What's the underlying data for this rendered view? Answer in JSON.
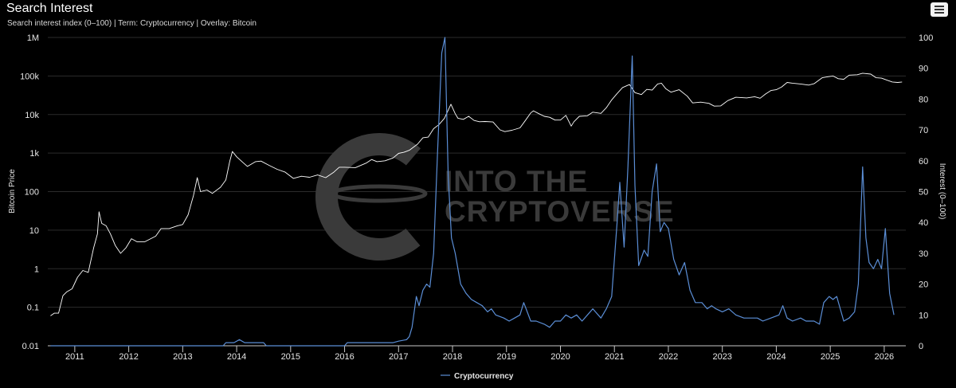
{
  "header": {
    "title": "Search Interest",
    "subtitle": "Search interest index (0–100) | Term: Cryptocurrency | Overlay: Bitcoin",
    "menu_icon": "hamburger-menu-icon"
  },
  "watermark": {
    "line1": "INTO THE",
    "line2": "CRYPTOVERSE"
  },
  "colors": {
    "background": "#000000",
    "grid": "#2b2b2b",
    "price_line": "#ffffff",
    "interest_line": "#5b8ed6"
  },
  "chart_data": {
    "type": "line",
    "title": "Search Interest",
    "grid": true,
    "legend": {
      "position": "bottom-center",
      "entries": [
        "Cryptocurrency"
      ]
    },
    "x_axis": {
      "ticks": [
        "2011",
        "2012",
        "2013",
        "2014",
        "2015",
        "2016",
        "2017",
        "2018",
        "2019",
        "2020",
        "2021",
        "2022",
        "2023",
        "2024",
        "2025",
        "2026"
      ],
      "range": [
        2010.5,
        2026.4
      ]
    },
    "y_axis_left": {
      "label": "Bitcoin Price",
      "scale": "log",
      "range": [
        0.01,
        1000000
      ],
      "ticks": [
        "0.01",
        "0.1",
        "1",
        "10",
        "100",
        "1k",
        "10k",
        "100k",
        "1M"
      ]
    },
    "y_axis_right": {
      "label": "Interest (0–100)",
      "scale": "linear",
      "range": [
        0,
        100
      ],
      "ticks": [
        "0",
        "10",
        "20",
        "30",
        "40",
        "50",
        "60",
        "70",
        "80",
        "90",
        "100"
      ]
    },
    "series": [
      {
        "name": "Bitcoin Price",
        "axis": "left",
        "color": "#ffffff",
        "points": [
          [
            2010.55,
            0.06
          ],
          [
            2010.62,
            0.07
          ],
          [
            2010.7,
            0.07
          ],
          [
            2010.78,
            0.2
          ],
          [
            2010.85,
            0.25
          ],
          [
            2010.95,
            0.3
          ],
          [
            2011.05,
            0.6
          ],
          [
            2011.15,
            0.9
          ],
          [
            2011.25,
            0.8
          ],
          [
            2011.35,
            3.5
          ],
          [
            2011.42,
            8
          ],
          [
            2011.45,
            30
          ],
          [
            2011.5,
            15
          ],
          [
            2011.58,
            13
          ],
          [
            2011.66,
            8
          ],
          [
            2011.75,
            4
          ],
          [
            2011.85,
            2.5
          ],
          [
            2011.95,
            3.5
          ],
          [
            2012.05,
            6
          ],
          [
            2012.15,
            5
          ],
          [
            2012.3,
            5
          ],
          [
            2012.5,
            7
          ],
          [
            2012.6,
            11
          ],
          [
            2012.75,
            11
          ],
          [
            2012.9,
            13
          ],
          [
            2013.0,
            14
          ],
          [
            2013.1,
            25
          ],
          [
            2013.2,
            80
          ],
          [
            2013.27,
            230
          ],
          [
            2013.33,
            100
          ],
          [
            2013.45,
            110
          ],
          [
            2013.55,
            90
          ],
          [
            2013.7,
            130
          ],
          [
            2013.8,
            200
          ],
          [
            2013.87,
            600
          ],
          [
            2013.92,
            1100
          ],
          [
            2014.0,
            800
          ],
          [
            2014.1,
            600
          ],
          [
            2014.2,
            450
          ],
          [
            2014.35,
            600
          ],
          [
            2014.45,
            620
          ],
          [
            2014.6,
            480
          ],
          [
            2014.75,
            380
          ],
          [
            2014.9,
            320
          ],
          [
            2015.05,
            220
          ],
          [
            2015.2,
            250
          ],
          [
            2015.35,
            235
          ],
          [
            2015.5,
            270
          ],
          [
            2015.65,
            230
          ],
          [
            2015.8,
            320
          ],
          [
            2015.9,
            430
          ],
          [
            2016.0,
            430
          ],
          [
            2016.2,
            420
          ],
          [
            2016.4,
            550
          ],
          [
            2016.5,
            680
          ],
          [
            2016.6,
            600
          ],
          [
            2016.75,
            630
          ],
          [
            2016.9,
            750
          ],
          [
            2017.0,
            980
          ],
          [
            2017.1,
            1050
          ],
          [
            2017.2,
            1180
          ],
          [
            2017.35,
            1700
          ],
          [
            2017.45,
            2500
          ],
          [
            2017.55,
            2600
          ],
          [
            2017.65,
            4300
          ],
          [
            2017.75,
            5500
          ],
          [
            2017.85,
            8000
          ],
          [
            2017.93,
            14000
          ],
          [
            2017.97,
            18500
          ],
          [
            2018.05,
            10500
          ],
          [
            2018.1,
            8000
          ],
          [
            2018.2,
            7500
          ],
          [
            2018.3,
            9000
          ],
          [
            2018.4,
            7000
          ],
          [
            2018.5,
            6500
          ],
          [
            2018.6,
            6600
          ],
          [
            2018.75,
            6400
          ],
          [
            2018.88,
            4000
          ],
          [
            2018.97,
            3600
          ],
          [
            2019.1,
            3900
          ],
          [
            2019.25,
            4500
          ],
          [
            2019.35,
            7000
          ],
          [
            2019.45,
            11000
          ],
          [
            2019.5,
            12500
          ],
          [
            2019.6,
            10500
          ],
          [
            2019.7,
            9000
          ],
          [
            2019.8,
            8500
          ],
          [
            2019.9,
            7200
          ],
          [
            2020.0,
            7200
          ],
          [
            2020.1,
            9500
          ],
          [
            2020.2,
            5000
          ],
          [
            2020.25,
            6500
          ],
          [
            2020.35,
            9000
          ],
          [
            2020.5,
            9300
          ],
          [
            2020.6,
            11500
          ],
          [
            2020.75,
            10700
          ],
          [
            2020.85,
            15000
          ],
          [
            2020.95,
            24000
          ],
          [
            2021.05,
            35000
          ],
          [
            2021.15,
            50000
          ],
          [
            2021.28,
            60000
          ],
          [
            2021.38,
            37000
          ],
          [
            2021.5,
            33000
          ],
          [
            2021.6,
            45000
          ],
          [
            2021.7,
            43000
          ],
          [
            2021.8,
            62000
          ],
          [
            2021.87,
            65000
          ],
          [
            2021.95,
            47000
          ],
          [
            2022.05,
            38000
          ],
          [
            2022.2,
            44000
          ],
          [
            2022.35,
            30000
          ],
          [
            2022.45,
            20000
          ],
          [
            2022.6,
            21000
          ],
          [
            2022.75,
            19500
          ],
          [
            2022.85,
            16500
          ],
          [
            2022.97,
            16800
          ],
          [
            2023.1,
            23000
          ],
          [
            2023.25,
            28000
          ],
          [
            2023.45,
            27000
          ],
          [
            2023.6,
            29000
          ],
          [
            2023.7,
            26500
          ],
          [
            2023.8,
            34000
          ],
          [
            2023.9,
            42000
          ],
          [
            2024.0,
            44000
          ],
          [
            2024.1,
            52000
          ],
          [
            2024.2,
            68000
          ],
          [
            2024.3,
            65000
          ],
          [
            2024.45,
            62000
          ],
          [
            2024.6,
            58000
          ],
          [
            2024.7,
            63000
          ],
          [
            2024.85,
            90000
          ],
          [
            2024.97,
            96000
          ],
          [
            2025.05,
            100000
          ],
          [
            2025.15,
            85000
          ],
          [
            2025.25,
            82000
          ],
          [
            2025.35,
            105000
          ],
          [
            2025.5,
            108000
          ],
          [
            2025.6,
            118000
          ],
          [
            2025.75,
            112000
          ],
          [
            2025.85,
            90000
          ],
          [
            2025.95,
            88000
          ],
          [
            2026.05,
            78000
          ],
          [
            2026.15,
            70000
          ],
          [
            2026.25,
            68000
          ],
          [
            2026.33,
            70000
          ]
        ]
      },
      {
        "name": "Cryptocurrency",
        "axis": "right",
        "color": "#5b8ed6",
        "points": [
          [
            2010.55,
            0
          ],
          [
            2013.75,
            0
          ],
          [
            2013.8,
            1
          ],
          [
            2013.95,
            1
          ],
          [
            2014.05,
            2
          ],
          [
            2014.15,
            1
          ],
          [
            2014.5,
            1
          ],
          [
            2014.55,
            0
          ],
          [
            2016.0,
            0
          ],
          [
            2016.05,
            1
          ],
          [
            2016.9,
            1
          ],
          [
            2017.0,
            1.5
          ],
          [
            2017.15,
            2
          ],
          [
            2017.2,
            3
          ],
          [
            2017.25,
            6
          ],
          [
            2017.33,
            16
          ],
          [
            2017.38,
            13
          ],
          [
            2017.45,
            18
          ],
          [
            2017.52,
            20
          ],
          [
            2017.58,
            19
          ],
          [
            2017.65,
            30
          ],
          [
            2017.72,
            62
          ],
          [
            2017.8,
            95
          ],
          [
            2017.86,
            100
          ],
          [
            2017.92,
            55
          ],
          [
            2017.98,
            35
          ],
          [
            2018.05,
            30
          ],
          [
            2018.15,
            20
          ],
          [
            2018.25,
            17
          ],
          [
            2018.35,
            15
          ],
          [
            2018.45,
            14
          ],
          [
            2018.55,
            13
          ],
          [
            2018.65,
            11
          ],
          [
            2018.72,
            12
          ],
          [
            2018.8,
            10
          ],
          [
            2018.95,
            9
          ],
          [
            2019.05,
            8
          ],
          [
            2019.15,
            9
          ],
          [
            2019.25,
            10
          ],
          [
            2019.32,
            14
          ],
          [
            2019.45,
            8
          ],
          [
            2019.55,
            8
          ],
          [
            2019.7,
            7
          ],
          [
            2019.8,
            6
          ],
          [
            2019.9,
            8
          ],
          [
            2020.0,
            8
          ],
          [
            2020.1,
            10
          ],
          [
            2020.2,
            9
          ],
          [
            2020.3,
            10
          ],
          [
            2020.4,
            8
          ],
          [
            2020.5,
            10
          ],
          [
            2020.6,
            12
          ],
          [
            2020.75,
            9
          ],
          [
            2020.85,
            12
          ],
          [
            2020.95,
            16
          ],
          [
            2021.05,
            40
          ],
          [
            2021.1,
            53
          ],
          [
            2021.18,
            32
          ],
          [
            2021.25,
            58
          ],
          [
            2021.33,
            94
          ],
          [
            2021.38,
            52
          ],
          [
            2021.45,
            26
          ],
          [
            2021.55,
            31
          ],
          [
            2021.62,
            29
          ],
          [
            2021.7,
            50
          ],
          [
            2021.78,
            59
          ],
          [
            2021.85,
            37
          ],
          [
            2021.92,
            40
          ],
          [
            2022.0,
            38
          ],
          [
            2022.1,
            28
          ],
          [
            2022.2,
            23
          ],
          [
            2022.3,
            27
          ],
          [
            2022.4,
            18
          ],
          [
            2022.5,
            14
          ],
          [
            2022.62,
            14
          ],
          [
            2022.72,
            12
          ],
          [
            2022.8,
            13
          ],
          [
            2022.88,
            12
          ],
          [
            2023.0,
            11
          ],
          [
            2023.12,
            12
          ],
          [
            2023.25,
            10
          ],
          [
            2023.4,
            9
          ],
          [
            2023.55,
            9
          ],
          [
            2023.65,
            9
          ],
          [
            2023.75,
            8
          ],
          [
            2023.9,
            9
          ],
          [
            2024.05,
            10
          ],
          [
            2024.12,
            13
          ],
          [
            2024.2,
            9
          ],
          [
            2024.3,
            8
          ],
          [
            2024.45,
            9
          ],
          [
            2024.55,
            8
          ],
          [
            2024.7,
            8
          ],
          [
            2024.8,
            7
          ],
          [
            2024.88,
            14
          ],
          [
            2024.98,
            16
          ],
          [
            2025.05,
            15
          ],
          [
            2025.12,
            16
          ],
          [
            2025.25,
            8
          ],
          [
            2025.35,
            9
          ],
          [
            2025.45,
            11
          ],
          [
            2025.52,
            20
          ],
          [
            2025.6,
            58
          ],
          [
            2025.66,
            35
          ],
          [
            2025.72,
            27
          ],
          [
            2025.8,
            25
          ],
          [
            2025.88,
            28
          ],
          [
            2025.95,
            25
          ],
          [
            2026.02,
            38
          ],
          [
            2026.1,
            17
          ],
          [
            2026.18,
            10
          ]
        ]
      }
    ]
  }
}
